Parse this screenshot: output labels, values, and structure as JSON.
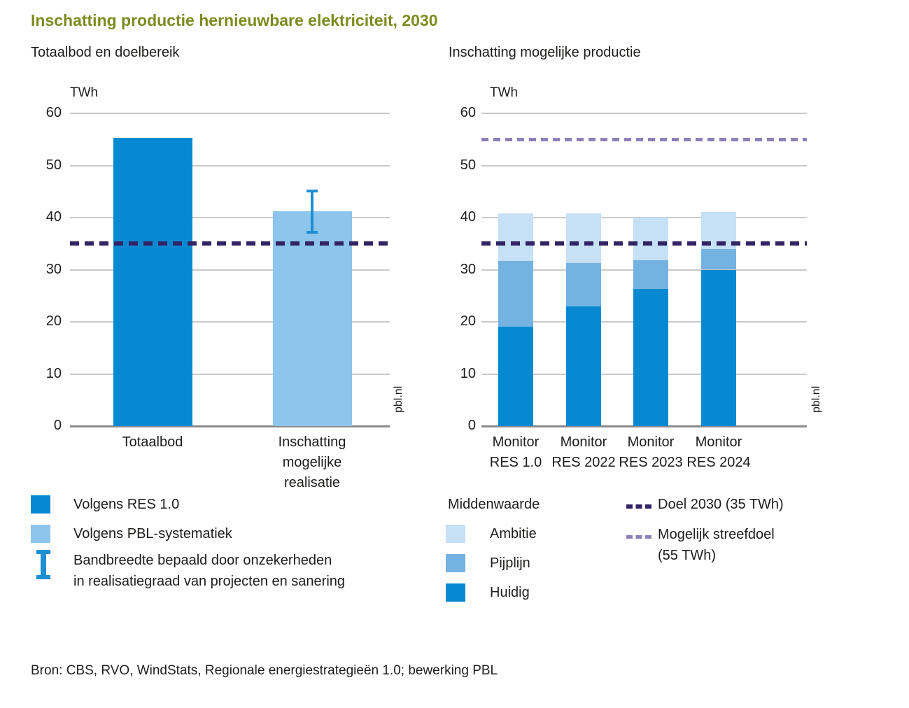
{
  "page": {
    "title": "Inschatting productie hernieuwbare elektriciteit, 2030",
    "source": "Bron: CBS, RVO, WindStats, Regionale energiestrategieën 1.0; bewerking PBL",
    "watermark": "pbl.nl"
  },
  "colors": {
    "huidig_blue": "#0689d1",
    "pijplijn_blue": "#74b2e2",
    "pbl_light_blue": "#8dc5ec",
    "ambitie_blue": "#c6e0f5",
    "dark_purple": "#312364",
    "light_purple": "#8d80b9",
    "error_bar_blue": "#1f8fd4",
    "title_green": "#7c8b1f",
    "grid_gray": "#c9c9c9",
    "axis_gray": "#8a8a8a",
    "text": "#1d1d1b"
  },
  "chart_data": [
    {
      "id": "left",
      "type": "bar",
      "subtitle": "Totaalbod en doelbereik",
      "unit": "TWh",
      "categories": [
        "Totaalbod",
        "Inschatting mogelijke realisatie"
      ],
      "label_lines": [
        [
          "Totaalbod"
        ],
        [
          "Inschatting",
          "mogelijke",
          "realisatie"
        ]
      ],
      "values": [
        55.3,
        41.2
      ],
      "bar_colors": [
        "huidig_blue",
        "pbl_light_blue"
      ],
      "error_bar": {
        "bar_index": 1,
        "low": 37,
        "high": 45.3
      },
      "reference_lines": [
        {
          "label": "Doel 2030 (35 TWh)",
          "value": 35,
          "color_key": "dark_purple"
        }
      ],
      "ylim": [
        0,
        60
      ],
      "yticks": [
        0,
        10,
        20,
        30,
        40,
        50,
        60
      ],
      "grid": true,
      "ylabel": "TWh",
      "xlabel": ""
    },
    {
      "id": "right",
      "type": "stacked_bar",
      "subtitle": "Inschatting mogelijke productie",
      "unit": "TWh",
      "categories": [
        "Monitor RES 1.0",
        "Monitor RES 2022",
        "Monitor RES 2023",
        "Monitor RES 2024"
      ],
      "label_lines": [
        [
          "Monitor",
          "RES 1.0"
        ],
        [
          "Monitor",
          "RES 2022"
        ],
        [
          "Monitor",
          "RES 2023"
        ],
        [
          "Monitor",
          "RES 2024"
        ]
      ],
      "series": [
        {
          "name": "Huidig",
          "values": [
            19.0,
            23.0,
            26.3,
            30.0
          ],
          "color_key": "huidig_blue"
        },
        {
          "name": "Pijplijn",
          "values": [
            12.7,
            8.3,
            5.5,
            4.0
          ],
          "color_key": "pijplijn_blue"
        },
        {
          "name": "Ambitie",
          "values": [
            9.1,
            9.5,
            8.2,
            7.1
          ],
          "color_key": "ambitie_blue"
        }
      ],
      "totals": [
        40.8,
        40.8,
        40.0,
        41.1
      ],
      "reference_lines": [
        {
          "label": "Doel 2030 (35 TWh)",
          "value": 35,
          "color_key": "dark_purple"
        },
        {
          "label": "Mogelijk streefdoel (55 TWh)",
          "value": 55,
          "color_key": "light_purple"
        }
      ],
      "ylim": [
        0,
        60
      ],
      "yticks": [
        0,
        10,
        20,
        30,
        40,
        50,
        60
      ],
      "grid": true,
      "ylabel": "TWh",
      "xlabel": ""
    }
  ],
  "legend_left": {
    "items": [
      {
        "swatch": "huidig_blue",
        "label": "Volgens RES 1.0"
      },
      {
        "swatch": "pbl_light_blue",
        "label": "Volgens PBL-systematiek"
      },
      {
        "glyph": "error-bar",
        "label_line1": "Bandbreedte bepaald door onzekerheden",
        "label_line2": "in realisatiegraad van projecten en sanering"
      }
    ]
  },
  "legend_right": {
    "header": "Middenwaarde",
    "items": [
      {
        "swatch": "ambitie_blue",
        "label": "Ambitie"
      },
      {
        "swatch": "pijplijn_blue",
        "label": "Pijplijn"
      },
      {
        "swatch": "huidig_blue",
        "label": "Huidig"
      }
    ],
    "lines": [
      {
        "dash": "dark_purple",
        "label": "Doel 2030 (35 TWh)"
      },
      {
        "dash": "light_purple",
        "label_line1": "Mogelijk streefdoel",
        "label_line2": "(55 TWh)"
      }
    ]
  }
}
